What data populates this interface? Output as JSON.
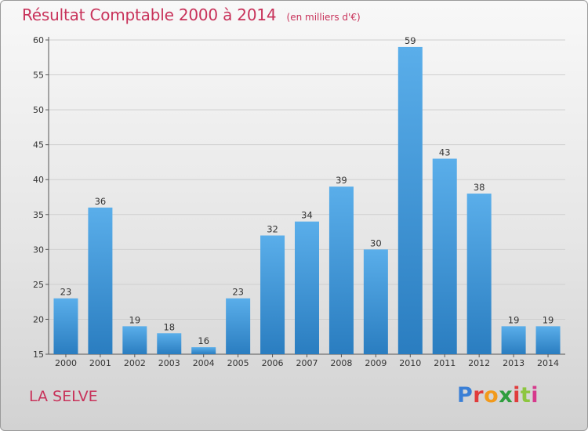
{
  "header": {
    "title": "Résultat Comptable 2000 à 2014",
    "subtitle": "(en milliers d'€)"
  },
  "footer": {
    "commune": "LA SELVE",
    "brand": "Proxiti",
    "brand_colors": [
      "#3a7fd6",
      "#e03c3c",
      "#f29a1b",
      "#2e9e3e",
      "#e03c3c",
      "#8dc63f",
      "#d63a8c"
    ]
  },
  "colors": {
    "bar_light": "#5aaeea",
    "bar_dark": "#2a7dc0",
    "title": "#c8325a"
  },
  "chart_data": {
    "type": "bar",
    "title": "Résultat Comptable 2000 à 2014",
    "subtitle": "(en milliers d'€)",
    "xlabel": "",
    "ylabel": "",
    "categories": [
      "2000",
      "2001",
      "2002",
      "2003",
      "2004",
      "2005",
      "2006",
      "2007",
      "2008",
      "2009",
      "2010",
      "2011",
      "2012",
      "2013",
      "2014"
    ],
    "values": [
      23,
      36,
      19,
      18,
      16,
      23,
      32,
      34,
      39,
      30,
      59,
      43,
      38,
      19,
      19
    ],
    "ylim": [
      15,
      60
    ],
    "yticks": [
      15,
      20,
      25,
      30,
      35,
      40,
      45,
      50,
      55,
      60
    ],
    "grid": true
  }
}
